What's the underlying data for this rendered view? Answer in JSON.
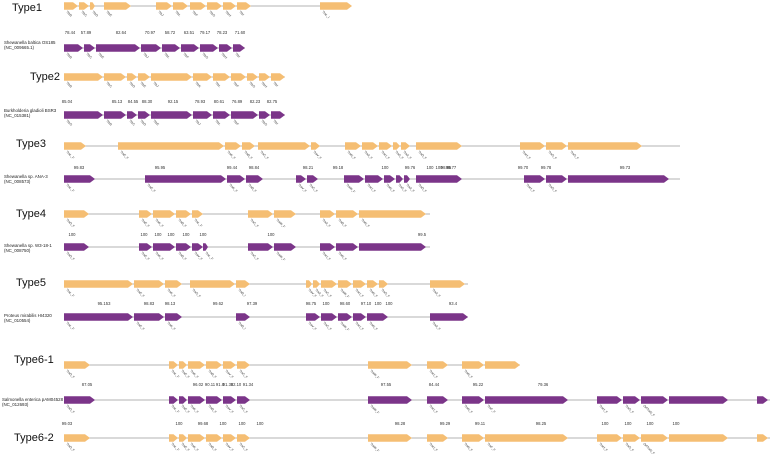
{
  "colors": {
    "query_gene": "#F5BE73",
    "reference_gene": "#7B3589",
    "backbone": "#9A9A9A"
  },
  "panels": [
    {
      "title": "Type1",
      "organism": [
        "Shewanella baltica OS185",
        "(NC_009665.1)"
      ],
      "top_genes": [
        "TrbB",
        "TrbC",
        "TrbD",
        "TrbE",
        "TrbJ",
        "TrbL",
        "TrbF",
        "TrbG",
        "TrbH",
        "TrbI",
        "TraL_I"
      ],
      "identities": [
        "78.44",
        "57.89",
        "82.64",
        "70.97",
        "58.72",
        "63.51",
        "79.17",
        "78.23",
        "71.60"
      ],
      "bottom_genes": [
        "TrbB",
        "TrbC",
        "TrbE",
        "TrbJ",
        "TrbL",
        "TrbF",
        "TrbG",
        "TrbH",
        "TrbI"
      ]
    },
    {
      "title": "Type2",
      "organism": [
        "Burkholderia gladioli BSR3",
        "(NC_015381)"
      ],
      "top_genes": [
        "TrbB",
        "TrbC",
        "TrbD",
        "TrbE",
        "TrbJ",
        "TrbK",
        "TrbL",
        "TrbF",
        "TrbG",
        "TrbH",
        "TrbI"
      ],
      "identities": [
        "85.04",
        "85.13",
        "84.55",
        "88.30",
        "92.15",
        "78.93",
        "80.61",
        "76.89",
        "82.23",
        "82.75"
      ],
      "bottom_genes": [
        "TrbG",
        "TrbB",
        "TrbC",
        "TrbD",
        "TrbE",
        "TrbJ",
        "TrbL",
        "TrbF",
        "TrbG",
        "TrbI"
      ]
    },
    {
      "title": "Type3",
      "organism": [
        "Shewanella sp. ANA-3",
        "(NC_008573)"
      ],
      "top_genes": [
        "TraL_F",
        "TraE_F",
        "TraK_F",
        "TraB_F",
        "TraC_F",
        "TraV_F",
        "TraN_F",
        "TraA_F",
        "TraU_F",
        "TraS_F",
        "TraA_F",
        "TraD_F",
        "TraH_F",
        "TraG_F",
        "TraG_F"
      ],
      "identities": [
        "99.83",
        "95.95",
        "99.44",
        "98.84",
        "98.21",
        "99.18",
        "100",
        "99.76",
        "100",
        "100",
        "98.95",
        "99.77",
        "99.70",
        "99.78",
        "99.73"
      ],
      "bottom_genes": [
        "TraL_F",
        "TraE_F",
        "TraK_F",
        "TraB_F",
        "TraV_F",
        "TraC_F",
        "TraW_F",
        "TraU_F",
        "TraN_F",
        "TraS_F",
        "TraA_F",
        "TraD_F",
        "TraH_F",
        "TraG_F"
      ]
    },
    {
      "title": "Type4",
      "organism": [
        "Shewanella sp. W3-18-1",
        "(NC_008750)"
      ],
      "top_genes": [
        "TraD_F",
        "TraE_F",
        "TraK_F",
        "TraB_F",
        "TraL_F",
        "TraC_F",
        "TraW_F",
        "TraA_F",
        "TraB_F",
        "TraN_F"
      ],
      "identities": [
        "100",
        "100",
        "100",
        "100",
        "100",
        "100",
        "100",
        "99.5"
      ],
      "bottom_genes": [
        "TraD_F",
        "TraE_F",
        "TraK_F",
        "TraB_F",
        "TraV_F",
        "TraL_F",
        "TraC_F",
        "TraW_F",
        "TraU_F",
        "TraN_F"
      ]
    },
    {
      "title": "Type5",
      "organism": [
        "Proteus mirabilis HI4320",
        "(NC_010554)"
      ],
      "top_genes": [
        "TraL_F",
        "TraE_F",
        "TraK_F",
        "TraG_F",
        "TraB_I",
        "TraV_F",
        "TraA_F",
        "TraC_F",
        "TraW_F",
        "TraU_F",
        "TraN_F",
        "TraG_F",
        "TraA_F"
      ],
      "identities": [
        "95.153",
        "98.83",
        "98.13",
        "99.62",
        "97.39",
        "98.75",
        "100",
        "98.60",
        "97.10",
        "100",
        "100",
        "93.4"
      ],
      "bottom_genes": [
        "TraL_F",
        "TraE_F",
        "TraK_F",
        "TraB_I",
        "TraV_F",
        "TraC_F",
        "TraW_F",
        "TraU_F",
        "TraN_F",
        "TraA_F"
      ]
    },
    {
      "title": "Type6-1",
      "organism": [
        "Salmonella enterica pAM04528",
        "(NC_012693)"
      ],
      "top_genes": [
        "TraD_F",
        "TraL_F",
        "TraE_F",
        "TraK_F",
        "TraB_F",
        "TraV_F",
        "TraC_F",
        "TraW_F",
        "TraU_F",
        "TraN_F"
      ],
      "identities": [
        "87.05",
        "96.02",
        "90.11",
        "91.8",
        "91.30",
        "92.10",
        "91.34",
        "97.55",
        "84.44",
        "95.22",
        "79.36"
      ],
      "bottom_genes": [
        "TraD_F",
        "TraL_F",
        "TraE_F",
        "TraK_F",
        "TraB_F",
        "TraV_F",
        "TraC_F",
        "TraW_F",
        "TraU_F",
        "TraN_F",
        "TraF_F",
        "TraH_F",
        "TraG_F",
        "OrfTraN_F"
      ],
      "bottom_identities": [
        "99.03",
        "100",
        "99.68",
        "100",
        "100",
        "100",
        "98.28",
        "99.29",
        "99.11",
        "98.25",
        "100",
        "100",
        "100",
        "100"
      ]
    },
    {
      "title": "Type6-2",
      "top_genes": [
        "TraD_F",
        "TraL_F",
        "TraE_F",
        "TraK_F",
        "TraB_F",
        "TraV_F",
        "TraC_F",
        "TraW_F",
        "TraU_F",
        "TraN_F",
        "TraF_F",
        "TraH_F",
        "TraG_F",
        "OrfTraN_F"
      ]
    }
  ]
}
